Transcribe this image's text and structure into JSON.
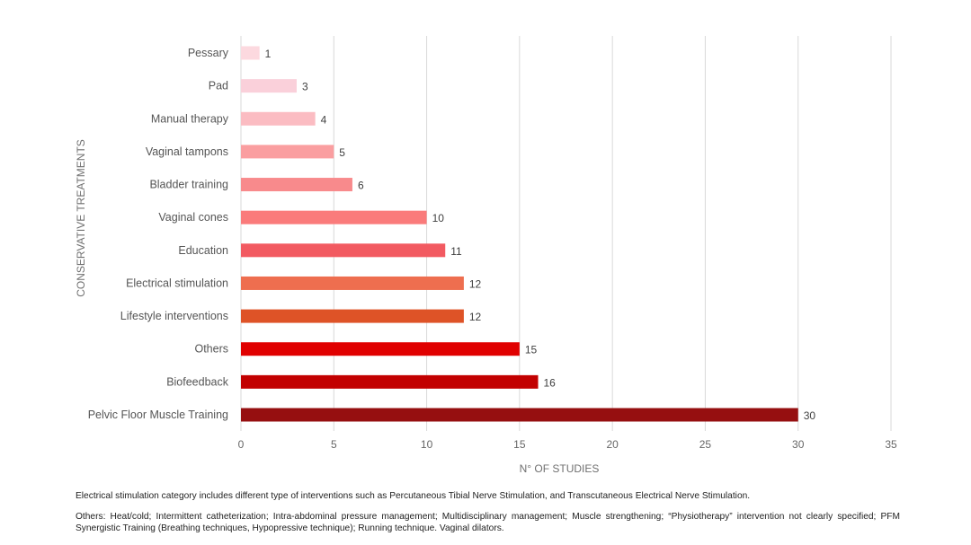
{
  "chart_data": {
    "type": "bar",
    "orientation": "horizontal",
    "categories": [
      "Pessary",
      "Pad",
      "Manual therapy",
      "Vaginal tampons",
      "Bladder training",
      "Vaginal cones",
      "Education",
      "Electrical stimulation",
      "Lifestyle interventions",
      "Others",
      "Biofeedback",
      "Pelvic Floor Muscle Training"
    ],
    "values": [
      1,
      3,
      4,
      5,
      6,
      10,
      11,
      12,
      12,
      15,
      16,
      30
    ],
    "colors": [
      "#fcd9df",
      "#fad0da",
      "#fbbcc2",
      "#fa9ea0",
      "#f88a8c",
      "#fa7b7b",
      "#f25a61",
      "#ee6e4f",
      "#de5327",
      "#e00000",
      "#c20000",
      "#960f10"
    ],
    "xlabel": "N° OF STUDIES",
    "ylabel": "CONSERVATIVE TREATMENTS",
    "xlim": [
      0,
      35
    ],
    "xticks": [
      0,
      5,
      10,
      15,
      20,
      25,
      30,
      35
    ],
    "grid": "vertical",
    "legend": "none"
  },
  "notes": [
    "Electrical stimulation category includes different type of interventions  such as Percutaneous Tibial Nerve  Stimulation, and Transcutaneous  Electrical Nerve  Stimulation.",
    "Others: Heat/cold; Intermittent catheterization; Intra-abdominal pressure management; Multidisciplinary management; Muscle strengthening; “Physiotherapy” intervention not clearly specified; PFM Synergistic Training (Breathing techniques, Hypopressive technique); Running technique. Vaginal dilators."
  ]
}
